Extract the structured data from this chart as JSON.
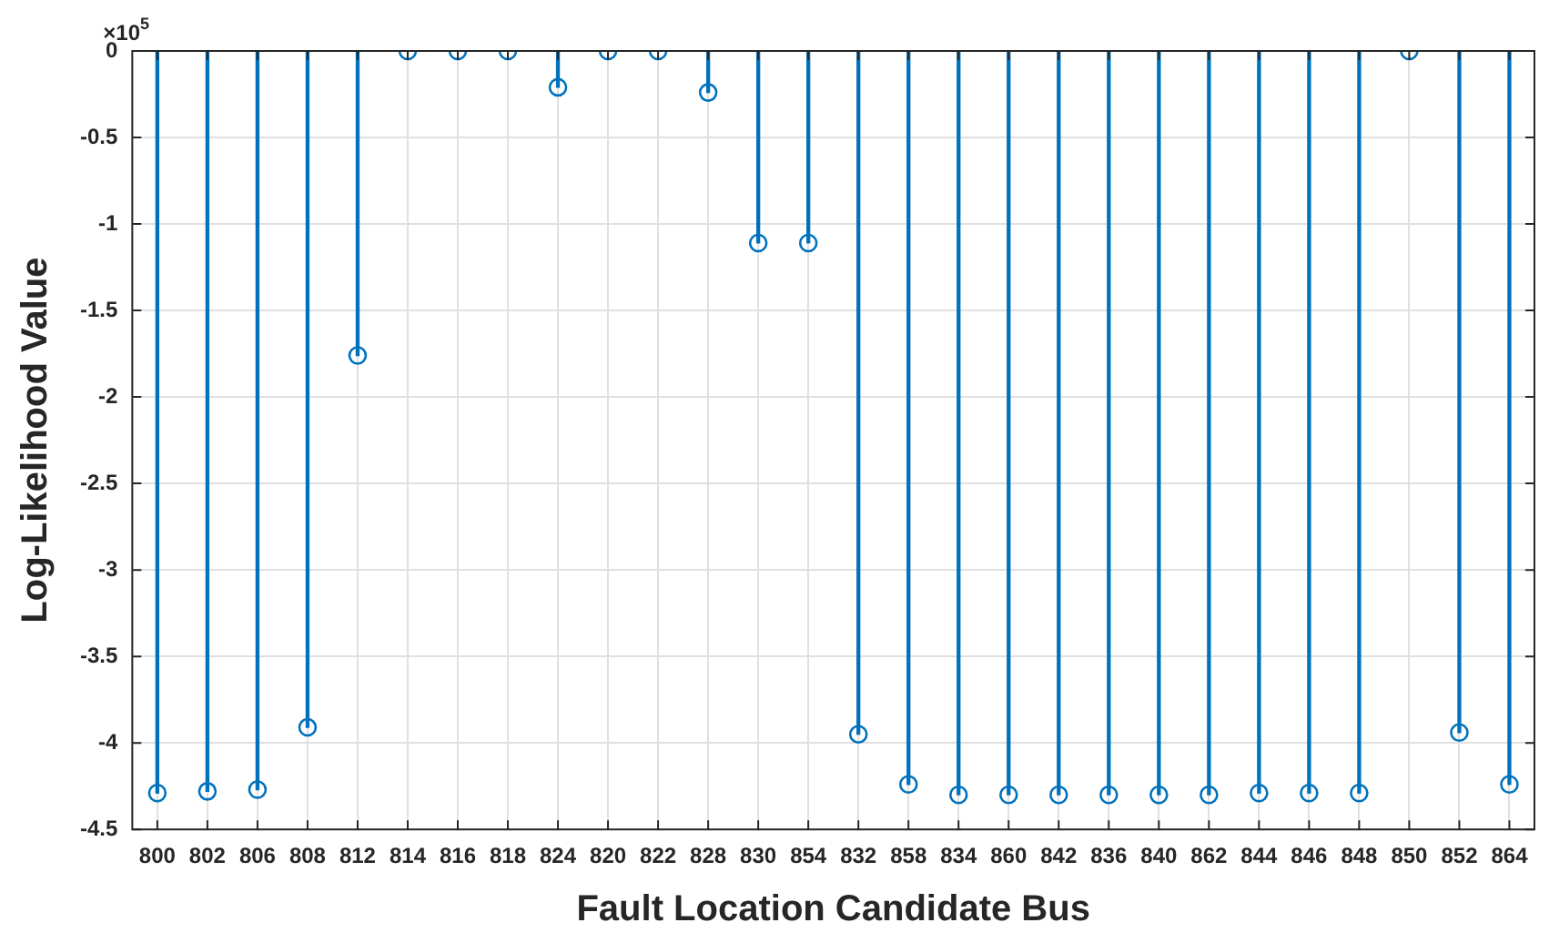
{
  "chart_data": {
    "type": "lollipop",
    "xlabel": "Fault Location Candidate Bus",
    "ylabel": "Log-Likelihood Value",
    "annotations": [
      "×10$^{5}$"
    ],
    "categories": [
      "800",
      "802",
      "806",
      "808",
      "812",
      "814",
      "816",
      "818",
      "824",
      "820",
      "822",
      "828",
      "830",
      "854",
      "832",
      "858",
      "834",
      "860",
      "842",
      "836",
      "840",
      "862",
      "844",
      "846",
      "848",
      "850",
      "852",
      "864"
    ],
    "values": [
      -4.29,
      -4.28,
      -4.27,
      -3.91,
      -1.76,
      0,
      0,
      0,
      -0.21,
      0,
      0,
      -0.24,
      -1.11,
      -1.11,
      -3.95,
      -4.24,
      -4.3,
      -4.3,
      -4.3,
      -4.3,
      -4.3,
      -4.3,
      -4.29,
      -4.29,
      -4.29,
      0,
      -3.94,
      -4.24
    ],
    "color": "#0072bd",
    "ylim": [
      -4.5,
      0
    ],
    "yticks": [
      -4.5,
      -4,
      -3.5,
      -3,
      -2.5,
      -2,
      -1.5,
      -1,
      -0.5,
      0
    ],
    "grid": true,
    "marker": "circle"
  }
}
